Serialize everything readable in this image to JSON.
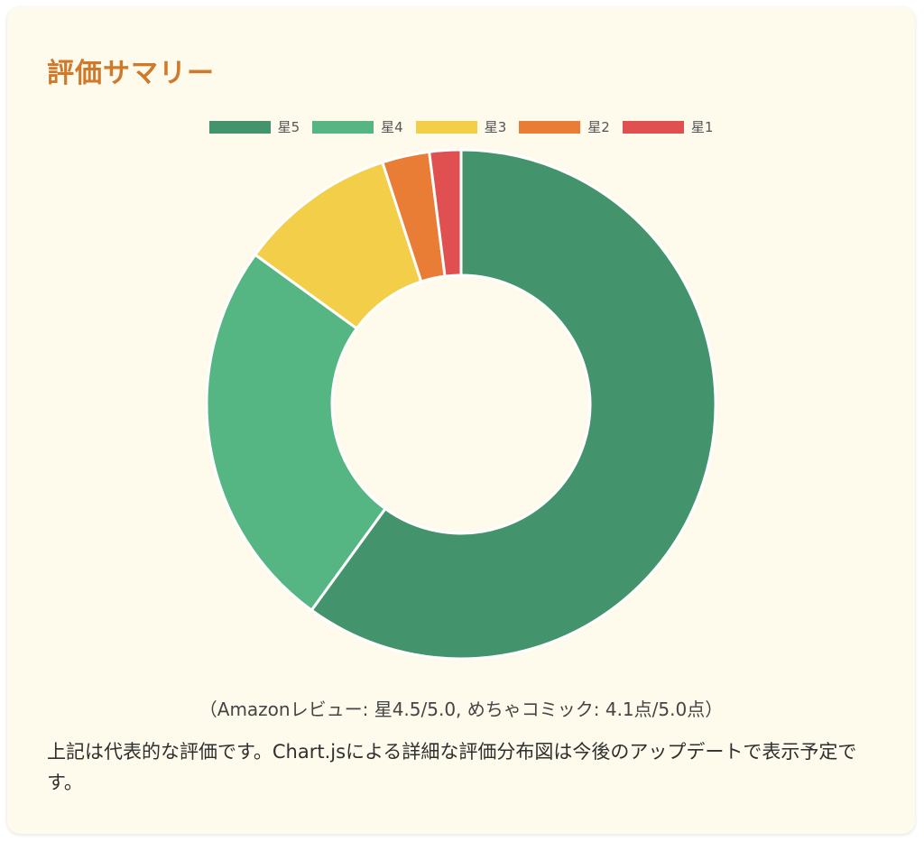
{
  "card": {
    "title": "評価サマリー",
    "caption": "（Amazonレビュー: 星4.5/5.0, めちゃコミック: 4.1点/5.0点）",
    "note": "上記は代表的な評価です。Chart.jsによる詳細な評価分布図は今後のアップデートで表示予定です。"
  },
  "chart_data": {
    "type": "pie",
    "variant": "doughnut",
    "categories": [
      "星5",
      "星4",
      "星3",
      "星2",
      "星1"
    ],
    "values": [
      60,
      25,
      10,
      3,
      2
    ],
    "colors": [
      "#43946c",
      "#55b684",
      "#f3ce48",
      "#ea7d35",
      "#e05050"
    ],
    "legend": "top",
    "start_angle": "top",
    "direction": "clockwise"
  }
}
